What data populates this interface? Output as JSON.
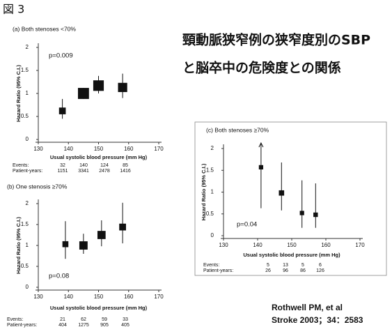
{
  "figure_label": "図 3",
  "heading": [
    "頸動脈狭窄例の狭窄度別のSBP",
    "と脳卒中の危険度との関係"
  ],
  "citation": [
    "Rothwell PM, et al",
    "Stroke  2003；34：2583"
  ],
  "chart_data": [
    {
      "type": "errorbar",
      "title": "(a) Both stenoses <70%",
      "annotation": "p=0.009",
      "x_label": "Usual systolic blood pressure (mm Hg)",
      "y_label": "Hazard Ratio (95% C.I.)",
      "xlim": [
        130,
        170
      ],
      "xticks": [
        130,
        140,
        150,
        160,
        170
      ],
      "ylim": [
        0,
        2
      ],
      "yticks": [
        0,
        0.5,
        1,
        1.5,
        2
      ],
      "x": [
        138,
        145,
        150,
        158
      ],
      "values": [
        0.62,
        1.0,
        1.17,
        1.13
      ],
      "ci_low": [
        0.45,
        0.88,
        1.0,
        0.9
      ],
      "ci_high": [
        0.88,
        1.12,
        1.38,
        1.43
      ],
      "events_label": "Events:",
      "events": [
        32,
        140,
        124,
        85
      ],
      "patient_years_label": "Patient-years:",
      "patient_years": [
        1151,
        3341,
        2478,
        1416
      ],
      "color": "#111111"
    },
    {
      "type": "errorbar",
      "title": "(b) One stenosis ≥70%",
      "annotation": "p=0.08",
      "x_label": "Usual systolic blood pressure (mm Hg)",
      "y_label": "Hazard Ratio (95% C.I.)",
      "xlim": [
        130,
        170
      ],
      "xticks": [
        130,
        140,
        150,
        160,
        170
      ],
      "ylim": [
        0,
        2
      ],
      "yticks": [
        0,
        0.5,
        1,
        1.5,
        2
      ],
      "x": [
        139,
        145,
        151,
        158
      ],
      "values": [
        1.03,
        1.0,
        1.25,
        1.44
      ],
      "ci_low": [
        0.68,
        0.8,
        0.98,
        1.05
      ],
      "ci_high": [
        1.58,
        1.28,
        1.6,
        2.02
      ],
      "events_label": "Events:",
      "events": [
        21,
        62,
        59,
        33
      ],
      "patient_years_label": "Patient-years:",
      "patient_years": [
        404,
        1275,
        905,
        405
      ],
      "color": "#111111"
    },
    {
      "type": "errorbar",
      "title": "(c) Both stenoses ≥70%",
      "annotation": "p=0.04",
      "x_label": "Usual systolic blood pressure (mm Hg)",
      "y_label": "Hazard Ratio (95% C.I.)",
      "xlim": [
        130,
        170
      ],
      "xticks": [
        130,
        140,
        150,
        160,
        170
      ],
      "ylim": [
        0,
        2
      ],
      "yticks": [
        0,
        0.5,
        1,
        1.5,
        2
      ],
      "x": [
        141,
        147,
        153,
        157
      ],
      "values": [
        1.57,
        0.98,
        0.52,
        0.48
      ],
      "ci_low": [
        0.63,
        0.58,
        0.18,
        0.18
      ],
      "ci_high": [
        null,
        1.68,
        1.27,
        1.2
      ],
      "events_label": "Events:",
      "events": [
        5,
        13,
        5,
        6
      ],
      "patient_years_label": "Patient-years:",
      "patient_years": [
        26,
        96,
        86,
        126
      ],
      "color": "#111111"
    }
  ]
}
